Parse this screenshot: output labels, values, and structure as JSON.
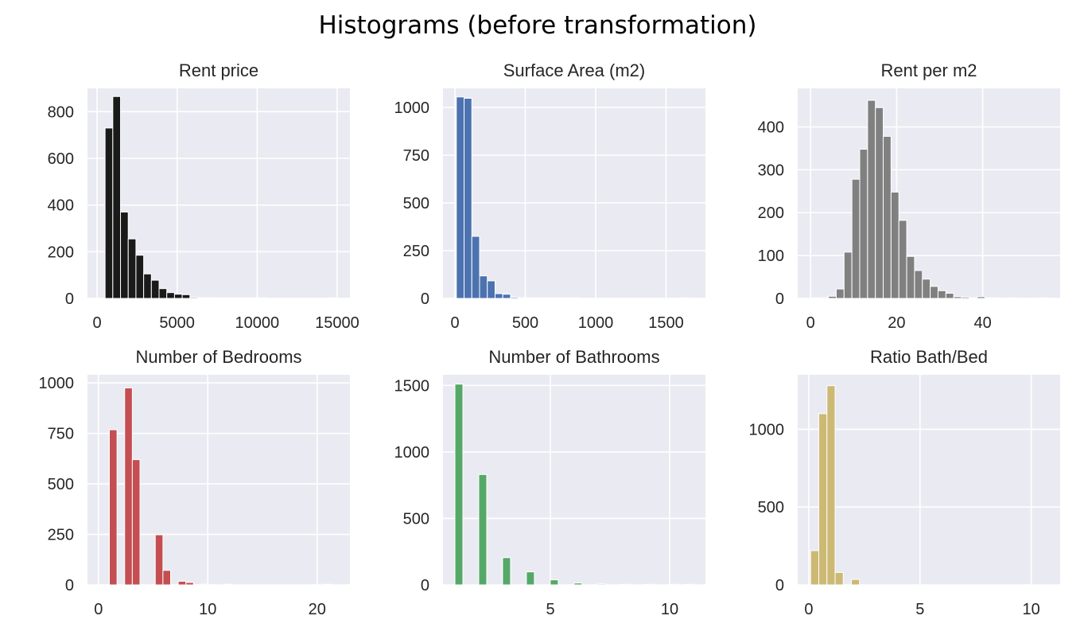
{
  "figure_title": "Histograms (before transformation)",
  "chart_data": [
    {
      "type": "bar",
      "title": "Rent price",
      "color": "#1a1a1a",
      "xlim": [
        -600,
        15800
      ],
      "ylim": [
        0,
        900
      ],
      "xticks": [
        {
          "v": 0,
          "label": "0"
        },
        {
          "v": 5000,
          "label": "5000"
        },
        {
          "v": 10000,
          "label": "10000"
        },
        {
          "v": 15000,
          "label": "15000"
        }
      ],
      "yticks": [
        {
          "v": 0,
          "label": "0"
        },
        {
          "v": 200,
          "label": "200"
        },
        {
          "v": 400,
          "label": "400"
        },
        {
          "v": 600,
          "label": "600"
        },
        {
          "v": 800,
          "label": "800"
        }
      ],
      "bin_start": 500,
      "bin_width": 482,
      "values": [
        730,
        865,
        370,
        255,
        185,
        105,
        78,
        42,
        25,
        18,
        16,
        4,
        3,
        3,
        2,
        1,
        1,
        1,
        1,
        1,
        1,
        0,
        0,
        0,
        0,
        0,
        0,
        0,
        0,
        1
      ]
    },
    {
      "type": "bar",
      "title": "Surface Area (m2)",
      "color": "#4c72b0",
      "xlim": [
        -85,
        1780
      ],
      "ylim": [
        0,
        1100
      ],
      "xticks": [
        {
          "v": 0,
          "label": "0"
        },
        {
          "v": 500,
          "label": "500"
        },
        {
          "v": 1000,
          "label": "1000"
        },
        {
          "v": 1500,
          "label": "1500"
        }
      ],
      "yticks": [
        {
          "v": 0,
          "label": "0"
        },
        {
          "v": 250,
          "label": "250"
        },
        {
          "v": 500,
          "label": "500"
        },
        {
          "v": 750,
          "label": "750"
        },
        {
          "v": 1000,
          "label": "1000"
        }
      ],
      "bin_start": 10,
      "bin_width": 55,
      "values": [
        1055,
        1048,
        325,
        118,
        92,
        25,
        22,
        6,
        4,
        3,
        2,
        1,
        1,
        1,
        1,
        1,
        0,
        0,
        0,
        0,
        0,
        0,
        0,
        0,
        0,
        0,
        0,
        0,
        0,
        1
      ]
    },
    {
      "type": "bar",
      "title": "Rent per m2",
      "color": "#808080",
      "xlim": [
        -3,
        58
      ],
      "ylim": [
        0,
        490
      ],
      "xticks": [
        {
          "v": 0,
          "label": "0"
        },
        {
          "v": 20,
          "label": "20"
        },
        {
          "v": 40,
          "label": "40"
        }
      ],
      "yticks": [
        {
          "v": 0,
          "label": "0"
        },
        {
          "v": 100,
          "label": "100"
        },
        {
          "v": 200,
          "label": "200"
        },
        {
          "v": 300,
          "label": "300"
        },
        {
          "v": 400,
          "label": "400"
        }
      ],
      "bin_start": 0.5,
      "bin_width": 1.82,
      "values": [
        1,
        2,
        5,
        22,
        108,
        278,
        348,
        462,
        445,
        378,
        248,
        182,
        98,
        65,
        45,
        28,
        18,
        12,
        4,
        3,
        1,
        4,
        1,
        1,
        0,
        1,
        0,
        0,
        0,
        1
      ]
    },
    {
      "type": "bar",
      "title": "Number of Bedrooms",
      "color": "#c44e52",
      "xlim": [
        -1,
        23
      ],
      "ylim": [
        0,
        1040
      ],
      "xticks": [
        {
          "v": 0,
          "label": "0"
        },
        {
          "v": 10,
          "label": "10"
        },
        {
          "v": 20,
          "label": "20"
        }
      ],
      "yticks": [
        {
          "v": 0,
          "label": "0"
        },
        {
          "v": 250,
          "label": "250"
        },
        {
          "v": 500,
          "label": "500"
        },
        {
          "v": 750,
          "label": "750"
        },
        {
          "v": 1000,
          "label": "1000"
        }
      ],
      "bin_start": 1,
      "bin_width": 0.7,
      "values": [
        768,
        0,
        975,
        620,
        0,
        0,
        248,
        72,
        0,
        18,
        12,
        0,
        4,
        0,
        0,
        1,
        0,
        0,
        0,
        0,
        0,
        0,
        0,
        0,
        0,
        0,
        0,
        0,
        1,
        0
      ]
    },
    {
      "type": "bar",
      "title": "Number of Bathrooms",
      "color": "#55a868",
      "xlim": [
        0.5,
        11.5
      ],
      "ylim": [
        0,
        1580
      ],
      "xticks": [
        {
          "v": 5,
          "label": "5"
        },
        {
          "v": 10,
          "label": "10"
        }
      ],
      "yticks": [
        {
          "v": 0,
          "label": "0"
        },
        {
          "v": 500,
          "label": "500"
        },
        {
          "v": 1000,
          "label": "1000"
        },
        {
          "v": 1500,
          "label": "1500"
        }
      ],
      "bin_start": 1,
      "bin_width": 0.333,
      "values": [
        1510,
        0,
        0,
        830,
        0,
        0,
        205,
        0,
        0,
        98,
        0,
        0,
        38,
        0,
        0,
        14,
        0,
        0,
        7,
        0,
        0,
        3,
        0,
        0,
        1,
        0,
        0,
        1,
        0,
        1
      ]
    },
    {
      "type": "bar",
      "title": "Ratio Bath/Bed",
      "color": "#ccb974",
      "xlim": [
        -0.5,
        11.3
      ],
      "ylim": [
        0,
        1350
      ],
      "xticks": [
        {
          "v": 0,
          "label": "0"
        },
        {
          "v": 5,
          "label": "5"
        },
        {
          "v": 10,
          "label": "10"
        }
      ],
      "yticks": [
        {
          "v": 0,
          "label": "0"
        },
        {
          "v": 500,
          "label": "500"
        },
        {
          "v": 1000,
          "label": "1000"
        }
      ],
      "bin_start": 0.083,
      "bin_width": 0.366,
      "values": [
        220,
        1100,
        1280,
        80,
        0,
        35,
        0,
        0,
        0,
        0,
        0,
        0,
        0,
        0,
        0,
        0,
        0,
        0,
        0,
        0,
        0,
        0,
        0,
        0,
        0,
        0,
        0,
        0,
        0,
        0
      ]
    }
  ]
}
